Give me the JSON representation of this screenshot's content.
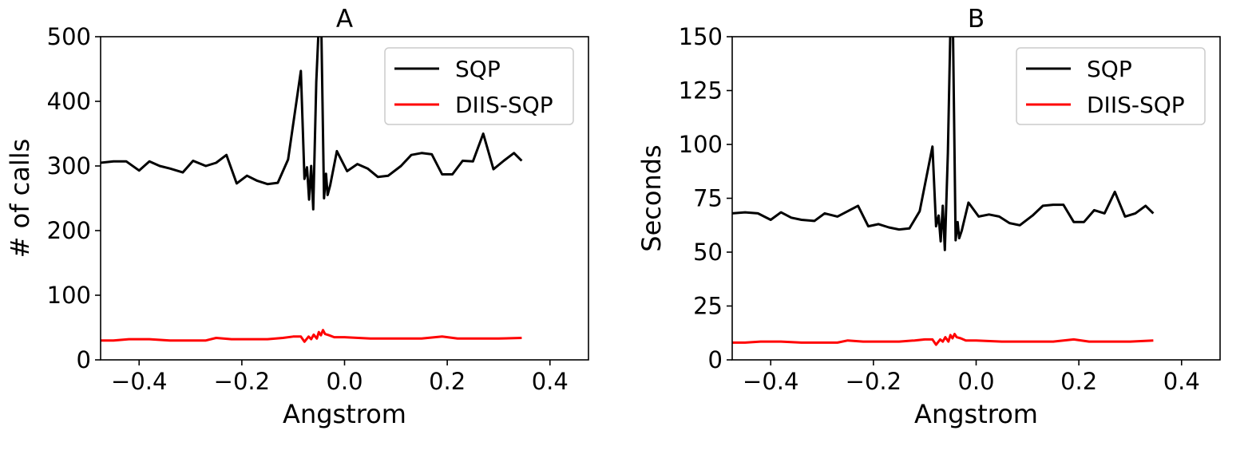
{
  "chart_data": [
    {
      "type": "line",
      "title": "A",
      "xlabel": "Angstrom",
      "ylabel": "# of calls",
      "xlim": [
        -0.475,
        0.475
      ],
      "ylim": [
        0,
        500
      ],
      "xticks": [
        -0.4,
        -0.2,
        0.0,
        0.2,
        0.4
      ],
      "xtick_labels": [
        "−0.4",
        "−0.2",
        "0.0",
        "0.2",
        "0.4"
      ],
      "yticks": [
        0,
        100,
        200,
        300,
        400,
        500
      ],
      "ytick_labels": [
        "0",
        "100",
        "200",
        "300",
        "400",
        "500"
      ],
      "grid": false,
      "legend_position": "top-right",
      "series": [
        {
          "name": "SQP",
          "color": "#000000",
          "points": [
            [
              -0.475,
              305
            ],
            [
              -0.45,
              307
            ],
            [
              -0.425,
              307
            ],
            [
              -0.4,
              293
            ],
            [
              -0.38,
              307
            ],
            [
              -0.36,
              300
            ],
            [
              -0.34,
              296
            ],
            [
              -0.315,
              290
            ],
            [
              -0.295,
              308
            ],
            [
              -0.27,
              300
            ],
            [
              -0.25,
              305
            ],
            [
              -0.23,
              317
            ],
            [
              -0.21,
              273
            ],
            [
              -0.19,
              285
            ],
            [
              -0.17,
              277
            ],
            [
              -0.15,
              272
            ],
            [
              -0.13,
              274
            ],
            [
              -0.11,
              310
            ],
            [
              -0.085,
              447
            ],
            [
              -0.078,
              280
            ],
            [
              -0.073,
              298
            ],
            [
              -0.069,
              248
            ],
            [
              -0.065,
              300
            ],
            [
              -0.061,
              233
            ],
            [
              -0.055,
              430
            ],
            [
              -0.05,
              520
            ],
            [
              -0.047,
              520
            ],
            [
              -0.045,
              500
            ],
            [
              -0.04,
              250
            ],
            [
              -0.036,
              288
            ],
            [
              -0.033,
              255
            ],
            [
              -0.028,
              270
            ],
            [
              -0.015,
              323
            ],
            [
              0.005,
              292
            ],
            [
              0.025,
              303
            ],
            [
              0.045,
              296
            ],
            [
              0.065,
              283
            ],
            [
              0.085,
              285
            ],
            [
              0.11,
              300
            ],
            [
              0.13,
              317
            ],
            [
              0.15,
              320
            ],
            [
              0.17,
              318
            ],
            [
              0.19,
              287
            ],
            [
              0.21,
              287
            ],
            [
              0.23,
              308
            ],
            [
              0.25,
              307
            ],
            [
              0.27,
              350
            ],
            [
              0.29,
              295
            ],
            [
              0.31,
              308
            ],
            [
              0.33,
              320
            ],
            [
              0.345,
              308
            ]
          ]
        },
        {
          "name": "DIIS-SQP",
          "color": "#ff0000",
          "points": [
            [
              -0.475,
              30
            ],
            [
              -0.45,
              30
            ],
            [
              -0.42,
              32
            ],
            [
              -0.38,
              32
            ],
            [
              -0.34,
              30
            ],
            [
              -0.3,
              30
            ],
            [
              -0.27,
              30
            ],
            [
              -0.25,
              34
            ],
            [
              -0.22,
              32
            ],
            [
              -0.18,
              32
            ],
            [
              -0.15,
              32
            ],
            [
              -0.12,
              34
            ],
            [
              -0.1,
              36
            ],
            [
              -0.085,
              36
            ],
            [
              -0.078,
              28
            ],
            [
              -0.07,
              36
            ],
            [
              -0.065,
              32
            ],
            [
              -0.06,
              39
            ],
            [
              -0.054,
              33
            ],
            [
              -0.05,
              43
            ],
            [
              -0.046,
              38
            ],
            [
              -0.042,
              46
            ],
            [
              -0.038,
              40
            ],
            [
              -0.03,
              38
            ],
            [
              -0.02,
              35
            ],
            [
              0.0,
              35
            ],
            [
              0.05,
              33
            ],
            [
              0.1,
              33
            ],
            [
              0.15,
              33
            ],
            [
              0.19,
              36
            ],
            [
              0.22,
              33
            ],
            [
              0.26,
              33
            ],
            [
              0.3,
              33
            ],
            [
              0.345,
              34
            ]
          ]
        }
      ]
    },
    {
      "type": "line",
      "title": "B",
      "xlabel": "Angstrom",
      "ylabel": "Seconds",
      "xlim": [
        -0.475,
        0.475
      ],
      "ylim": [
        0,
        150
      ],
      "xticks": [
        -0.4,
        -0.2,
        0.0,
        0.2,
        0.4
      ],
      "xtick_labels": [
        "−0.4",
        "−0.2",
        "0.0",
        "0.2",
        "0.4"
      ],
      "yticks": [
        0,
        25,
        50,
        75,
        100,
        125,
        150
      ],
      "ytick_labels": [
        "0",
        "25",
        "50",
        "75",
        "100",
        "125",
        "150"
      ],
      "grid": false,
      "legend_position": "top-right",
      "series": [
        {
          "name": "SQP",
          "color": "#000000",
          "points": [
            [
              -0.475,
              68
            ],
            [
              -0.45,
              68.5
            ],
            [
              -0.425,
              68
            ],
            [
              -0.4,
              65
            ],
            [
              -0.38,
              68.5
            ],
            [
              -0.36,
              66
            ],
            [
              -0.34,
              65
            ],
            [
              -0.315,
              64.5
            ],
            [
              -0.295,
              68
            ],
            [
              -0.27,
              66.5
            ],
            [
              -0.25,
              69
            ],
            [
              -0.23,
              71.5
            ],
            [
              -0.21,
              62
            ],
            [
              -0.19,
              63
            ],
            [
              -0.17,
              61.5
            ],
            [
              -0.15,
              60.5
            ],
            [
              -0.13,
              61
            ],
            [
              -0.11,
              69
            ],
            [
              -0.085,
              99
            ],
            [
              -0.078,
              62
            ],
            [
              -0.073,
              67
            ],
            [
              -0.069,
              55
            ],
            [
              -0.065,
              71.5
            ],
            [
              -0.061,
              51
            ],
            [
              -0.055,
              96
            ],
            [
              -0.05,
              155
            ],
            [
              -0.047,
              155
            ],
            [
              -0.045,
              150
            ],
            [
              -0.04,
              55.5
            ],
            [
              -0.036,
              64
            ],
            [
              -0.033,
              56.5
            ],
            [
              -0.028,
              60
            ],
            [
              -0.015,
              73
            ],
            [
              0.005,
              66.5
            ],
            [
              0.025,
              67.5
            ],
            [
              0.045,
              66.5
            ],
            [
              0.065,
              63.5
            ],
            [
              0.085,
              62.5
            ],
            [
              0.11,
              67
            ],
            [
              0.13,
              71.5
            ],
            [
              0.15,
              72
            ],
            [
              0.17,
              72
            ],
            [
              0.19,
              64
            ],
            [
              0.21,
              64
            ],
            [
              0.23,
              69.5
            ],
            [
              0.25,
              68
            ],
            [
              0.27,
              78
            ],
            [
              0.29,
              66.5
            ],
            [
              0.31,
              68
            ],
            [
              0.33,
              71.5
            ],
            [
              0.345,
              68
            ]
          ]
        },
        {
          "name": "DIIS-SQP",
          "color": "#ff0000",
          "points": [
            [
              -0.475,
              8
            ],
            [
              -0.45,
              8
            ],
            [
              -0.42,
              8.5
            ],
            [
              -0.38,
              8.5
            ],
            [
              -0.34,
              8
            ],
            [
              -0.3,
              8
            ],
            [
              -0.27,
              8
            ],
            [
              -0.25,
              9
            ],
            [
              -0.22,
              8.5
            ],
            [
              -0.18,
              8.5
            ],
            [
              -0.15,
              8.5
            ],
            [
              -0.12,
              9
            ],
            [
              -0.1,
              9.5
            ],
            [
              -0.085,
              9.5
            ],
            [
              -0.078,
              7
            ],
            [
              -0.07,
              9.5
            ],
            [
              -0.065,
              8.5
            ],
            [
              -0.06,
              10.5
            ],
            [
              -0.054,
              8.5
            ],
            [
              -0.05,
              11.5
            ],
            [
              -0.046,
              10
            ],
            [
              -0.042,
              12
            ],
            [
              -0.038,
              10.5
            ],
            [
              -0.03,
              10
            ],
            [
              -0.02,
              9
            ],
            [
              0.0,
              9
            ],
            [
              0.05,
              8.5
            ],
            [
              0.1,
              8.5
            ],
            [
              0.15,
              8.5
            ],
            [
              0.19,
              9.5
            ],
            [
              0.22,
              8.5
            ],
            [
              0.26,
              8.5
            ],
            [
              0.3,
              8.5
            ],
            [
              0.345,
              9
            ]
          ]
        }
      ]
    }
  ]
}
